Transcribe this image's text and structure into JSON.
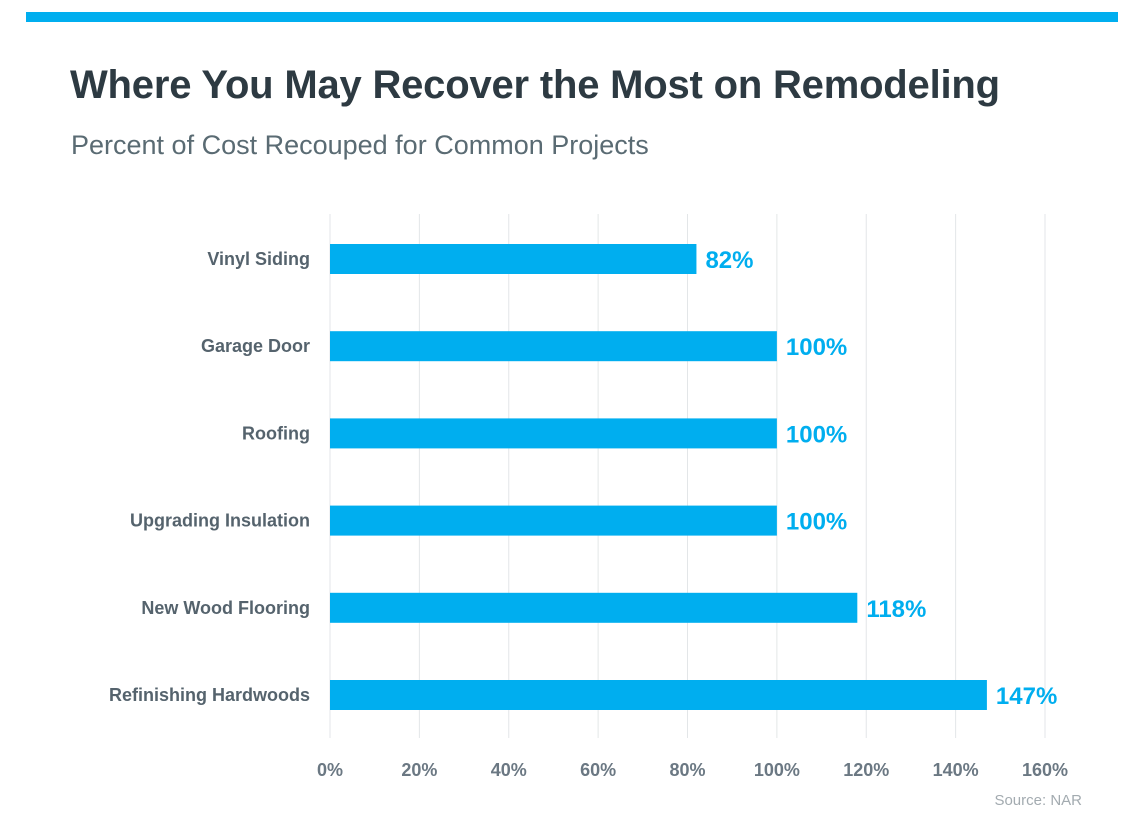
{
  "title": "Where You May Recover the Most on Remodeling",
  "subtitle": "Percent of Cost Recouped for Common Projects",
  "source": "Source: NAR",
  "colors": {
    "accent": "#00aeef",
    "title": "#2d3a42",
    "subtitle": "#5a6b73",
    "category_label": "#55636d",
    "tick_label": "#6b7883",
    "gridline": "#e3e6e8",
    "source": "#a3abb0"
  },
  "chart_data": {
    "type": "bar",
    "orientation": "horizontal",
    "title": "Where You May Recover the Most on Remodeling",
    "subtitle": "Percent of Cost Recouped for Common Projects",
    "categories": [
      "Vinyl Siding",
      "Garage Door",
      "Roofing",
      "Upgrading Insulation",
      "New Wood Flooring",
      "Refinishing Hardwoods"
    ],
    "values": [
      82,
      100,
      100,
      100,
      118,
      147
    ],
    "value_labels": [
      "82%",
      "100%",
      "100%",
      "100%",
      "118%",
      "147%"
    ],
    "unit": "%",
    "xlim": [
      0,
      160
    ],
    "ticks": [
      0,
      20,
      40,
      60,
      80,
      100,
      120,
      140,
      160
    ],
    "tick_labels": [
      "0%",
      "20%",
      "40%",
      "60%",
      "80%",
      "100%",
      "120%",
      "140%",
      "160%"
    ],
    "xlabel": "",
    "ylabel": "",
    "grid": "vertical",
    "legend": "none",
    "source": "Source: NAR"
  }
}
